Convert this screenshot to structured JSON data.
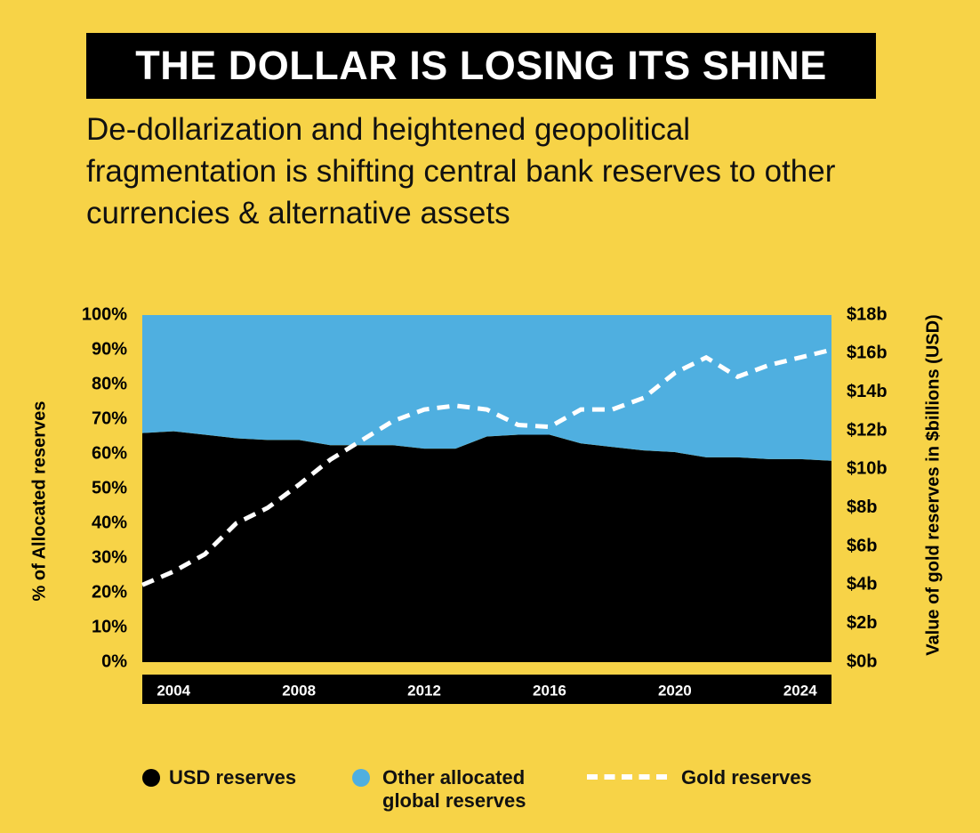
{
  "chart_data": {
    "type": "area",
    "title": "THE DOLLAR IS LOSING ITS SHINE",
    "subtitle": "De-dollarization and heightened geopolitical fragmentation is shifting central bank reserves to other currencies & alternative assets",
    "y_label": "% of Allocated reserves",
    "y2_label": "Value of gold reserves in $billions (USD)",
    "x": [
      2003,
      2004,
      2005,
      2006,
      2007,
      2008,
      2009,
      2010,
      2011,
      2012,
      2013,
      2014,
      2015,
      2016,
      2017,
      2018,
      2019,
      2020,
      2021,
      2022,
      2023,
      2024,
      2025
    ],
    "xlim": [
      2003,
      2025
    ],
    "xticks": [
      2004,
      2008,
      2012,
      2016,
      2020,
      2024
    ],
    "ylim": [
      0,
      100
    ],
    "yticks": [
      {
        "value": 0,
        "label": "0%"
      },
      {
        "value": 10,
        "label": "10%"
      },
      {
        "value": 20,
        "label": "20%"
      },
      {
        "value": 30,
        "label": "30%"
      },
      {
        "value": 40,
        "label": "40%"
      },
      {
        "value": 50,
        "label": "50%"
      },
      {
        "value": 60,
        "label": "60%"
      },
      {
        "value": 70,
        "label": "70%"
      },
      {
        "value": 80,
        "label": "80%"
      },
      {
        "value": 90,
        "label": "90%"
      },
      {
        "value": 100,
        "label": "100%"
      }
    ],
    "y2lim": [
      0,
      18
    ],
    "y2ticks": [
      {
        "value": 0,
        "label": "$0b"
      },
      {
        "value": 2,
        "label": "$2b"
      },
      {
        "value": 4,
        "label": "$4b"
      },
      {
        "value": 6,
        "label": "$6b"
      },
      {
        "value": 8,
        "label": "$8b"
      },
      {
        "value": 10,
        "label": "$10b"
      },
      {
        "value": 12,
        "label": "$12b"
      },
      {
        "value": 14,
        "label": "$14b"
      },
      {
        "value": 16,
        "label": "$16b"
      },
      {
        "value": 18,
        "label": "$18b"
      }
    ],
    "series": [
      {
        "name": "USD reserves",
        "color": "#000000",
        "values": [
          66,
          66.5,
          65.5,
          64.5,
          64,
          64,
          62.5,
          62.5,
          62.5,
          61.5,
          61.5,
          65,
          65.5,
          65.5,
          63,
          62,
          61,
          60.5,
          59,
          59,
          58.5,
          58.5,
          58
        ]
      },
      {
        "name": "Other allocated global reserves",
        "color": "#4fafe0",
        "values": [
          34,
          33.5,
          34.5,
          35.5,
          36,
          36,
          37.5,
          37.5,
          37.5,
          38.5,
          38.5,
          35,
          34.5,
          34.5,
          37,
          38,
          39,
          39.5,
          41,
          41,
          41.5,
          41.5,
          42
        ]
      },
      {
        "name": "Gold reserves",
        "color": "#ffffff",
        "type": "line",
        "axis": "y2",
        "values": [
          4,
          4.7,
          5.6,
          7.2,
          8,
          9.2,
          10.5,
          11.5,
          12.5,
          13.1,
          13.3,
          13.1,
          12.3,
          12.2,
          13.1,
          13.1,
          13.7,
          15,
          15.8,
          14.8,
          15.4,
          15.8,
          16.2
        ]
      }
    ]
  }
}
